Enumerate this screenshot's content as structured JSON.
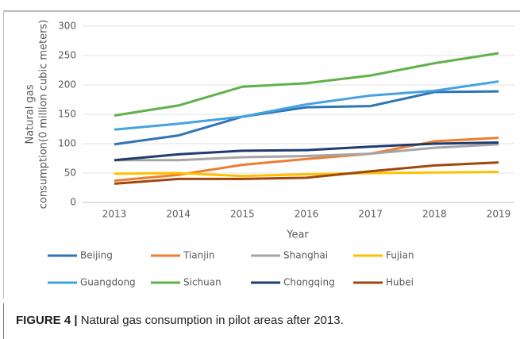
{
  "chart_data": {
    "type": "line",
    "categories": [
      "2013",
      "2014",
      "2015",
      "2016",
      "2017",
      "2018",
      "2019"
    ],
    "xlabel": "Year",
    "ylabel": [
      "Natural gas",
      "consumption(0 million cubic meters)"
    ],
    "ylim": [
      0,
      300
    ],
    "yticks": [
      0,
      50,
      100,
      150,
      200,
      250,
      300
    ],
    "grid": true,
    "legend": "bottom",
    "series": [
      {
        "name": "Beijing",
        "color": "#2e75b6",
        "values": [
          99,
          114,
          146,
          162,
          164,
          188,
          189
        ]
      },
      {
        "name": "Tianjin",
        "color": "#ed7d31",
        "values": [
          37,
          47,
          64,
          74,
          83,
          104,
          110
        ]
      },
      {
        "name": "Shanghai",
        "color": "#a5a5a5",
        "values": [
          72,
          72,
          77,
          79,
          83,
          93,
          99
        ]
      },
      {
        "name": "Fujian",
        "color": "#ffc000",
        "values": [
          49,
          50,
          45,
          48,
          50,
          51,
          52
        ]
      },
      {
        "name": "Guangdong",
        "color": "#45a2e0",
        "values": [
          124,
          134,
          146,
          167,
          182,
          190,
          206
        ]
      },
      {
        "name": "Sichuan",
        "color": "#5fb14a",
        "values": [
          148,
          165,
          197,
          203,
          216,
          237,
          254
        ]
      },
      {
        "name": "Chongqing",
        "color": "#1f3c6e",
        "values": [
          72,
          82,
          88,
          89,
          95,
          100,
          102
        ]
      },
      {
        "name": "Hubei",
        "color": "#9e480e",
        "values": [
          32,
          40,
          40,
          42,
          53,
          63,
          68
        ]
      }
    ]
  },
  "caption": {
    "label": "FIGURE 4 |",
    "text": "Natural gas consumption in pilot areas after 2013."
  }
}
